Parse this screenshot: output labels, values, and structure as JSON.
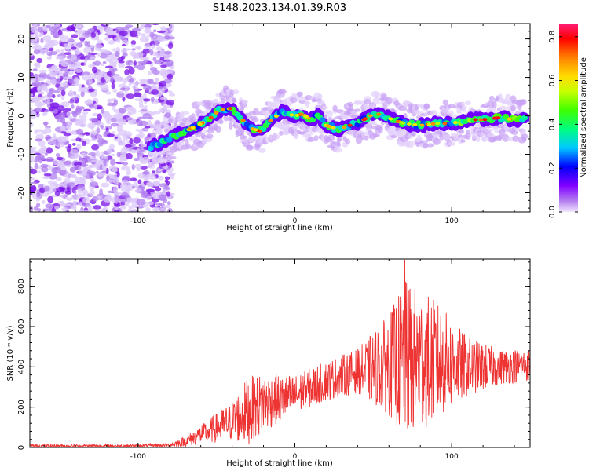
{
  "figure_title": "S148.2023.134.01.39.R03",
  "chart_data": [
    {
      "type": "heatmap",
      "xlabel": "Height of straight line (km)",
      "ylabel": "Frequency (Hz)",
      "xlim": [
        -169,
        150
      ],
      "ylim": [
        -25,
        24
      ],
      "x_ticks": [
        -100,
        0,
        100
      ],
      "y_ticks": [
        -20,
        -10,
        0,
        10,
        20
      ],
      "colorbar": {
        "label": "Normalized spectral amplitude",
        "range": [
          0,
          0.86
        ],
        "ticks": [
          "0.0",
          "0.2",
          "0.4",
          "0.6",
          "0.8"
        ],
        "colormap": [
          "#f0e6ff",
          "#b47cf0",
          "#8000ff",
          "#0000ff",
          "#00c8ff",
          "#00ff80",
          "#40ff00",
          "#c8ff00",
          "#ffdc00",
          "#ff8000",
          "#ff0000",
          "#ff1e78"
        ]
      },
      "noise_region_end_x": -80,
      "ridge": [
        {
          "x": -92,
          "y": -8
        },
        {
          "x": -85,
          "y": -7
        },
        {
          "x": -78,
          "y": -5.5
        },
        {
          "x": -70,
          "y": -4
        },
        {
          "x": -62,
          "y": -2.5
        },
        {
          "x": -55,
          "y": -1
        },
        {
          "x": -48,
          "y": 1.5
        },
        {
          "x": -40,
          "y": 2
        },
        {
          "x": -35,
          "y": 0
        },
        {
          "x": -30,
          "y": -3
        },
        {
          "x": -22,
          "y": -4
        },
        {
          "x": -15,
          "y": -1
        },
        {
          "x": -8,
          "y": 1
        },
        {
          "x": 0,
          "y": 0
        },
        {
          "x": 5,
          "y": 0.5
        },
        {
          "x": 10,
          "y": -1
        },
        {
          "x": 15,
          "y": 0
        },
        {
          "x": 20,
          "y": -2.5
        },
        {
          "x": 28,
          "y": -3.5
        },
        {
          "x": 35,
          "y": -2.5
        },
        {
          "x": 42,
          "y": -1.5
        },
        {
          "x": 48,
          "y": 0
        },
        {
          "x": 55,
          "y": 0.5
        },
        {
          "x": 62,
          "y": -1
        },
        {
          "x": 70,
          "y": -2
        },
        {
          "x": 80,
          "y": -2.5
        },
        {
          "x": 90,
          "y": -2
        },
        {
          "x": 100,
          "y": -2
        },
        {
          "x": 110,
          "y": -1
        },
        {
          "x": 120,
          "y": -1
        },
        {
          "x": 130,
          "y": -0.5
        },
        {
          "x": 140,
          "y": -1
        },
        {
          "x": 147,
          "y": -1
        }
      ]
    },
    {
      "type": "line",
      "xlabel": "Height of straight line (km)",
      "ylabel": "SNR (10 * v/v)",
      "xlim": [
        -169,
        150
      ],
      "ylim": [
        0,
        935
      ],
      "x_ticks": [
        -100,
        0,
        100
      ],
      "y_ticks": [
        0,
        200,
        400,
        600,
        800
      ],
      "color": "#ee3333",
      "envelope": [
        {
          "x": -169,
          "mean": 8,
          "spread": 8
        },
        {
          "x": -100,
          "mean": 8,
          "spread": 8
        },
        {
          "x": -80,
          "mean": 12,
          "spread": 10
        },
        {
          "x": -70,
          "mean": 30,
          "spread": 25
        },
        {
          "x": -55,
          "mean": 80,
          "spread": 60
        },
        {
          "x": -40,
          "mean": 130,
          "spread": 100
        },
        {
          "x": -30,
          "mean": 180,
          "spread": 170
        },
        {
          "x": -20,
          "mean": 220,
          "spread": 150
        },
        {
          "x": -10,
          "mean": 240,
          "spread": 120
        },
        {
          "x": 0,
          "mean": 260,
          "spread": 100
        },
        {
          "x": 20,
          "mean": 330,
          "spread": 100
        },
        {
          "x": 40,
          "mean": 380,
          "spread": 110
        },
        {
          "x": 60,
          "mean": 410,
          "spread": 250
        },
        {
          "x": 70,
          "mean": 430,
          "spread": 400
        },
        {
          "x": 90,
          "mean": 430,
          "spread": 300
        },
        {
          "x": 110,
          "mean": 400,
          "spread": 150
        },
        {
          "x": 130,
          "mean": 400,
          "spread": 90
        },
        {
          "x": 150,
          "mean": 410,
          "spread": 80
        }
      ],
      "peak": {
        "x": 70,
        "y": 930
      }
    }
  ]
}
